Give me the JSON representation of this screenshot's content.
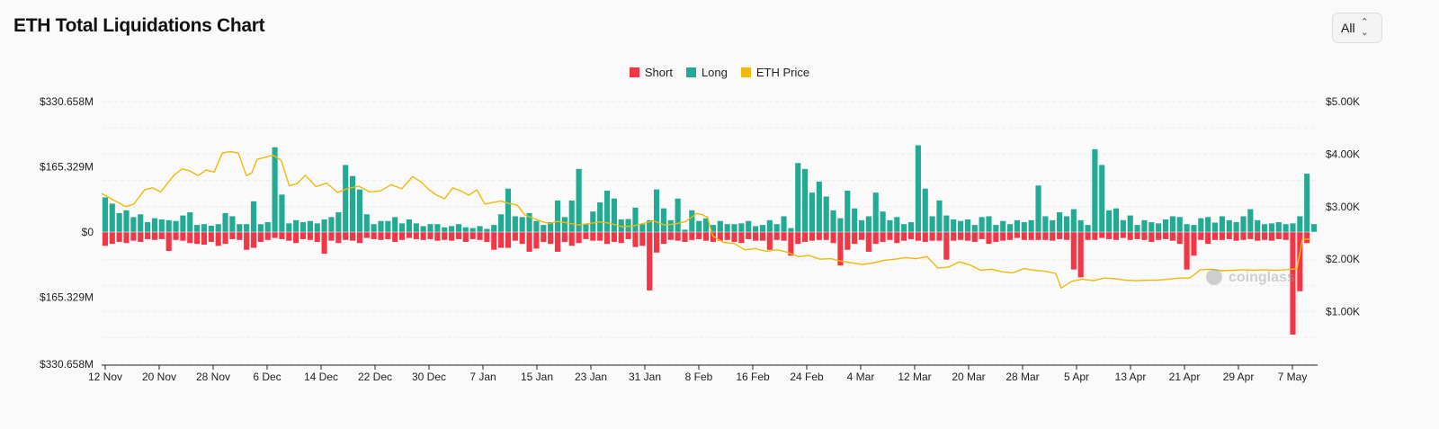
{
  "page": {
    "title": "ETH Total Liquidations Chart"
  },
  "range_select": {
    "value": "All"
  },
  "colors": {
    "short": "#f23645",
    "long": "#22ab94",
    "price": "#f0b90b",
    "background": "#fafafa"
  },
  "icons": {
    "range_select": "chevron-up-down-icon"
  },
  "watermark": "coinglass",
  "chart_data": {
    "type": "bar",
    "title": "ETH Total Liquidations Chart",
    "legend": [
      "Short",
      "Long",
      "ETH Price"
    ],
    "legend_position": "top-center",
    "grid": true,
    "y_left": {
      "ticks": [
        "$330.658M",
        "$165.329M",
        "$0",
        "$165.329M",
        "$330.658M"
      ],
      "range_millions": [
        -330.658,
        330.658
      ]
    },
    "y_right": {
      "ticks": [
        "$5.00K",
        "$4.00K",
        "$3.00K",
        "$2.00K",
        "$1.00K"
      ],
      "range": [
        0,
        5000
      ]
    },
    "x_ticks": [
      "12 Nov",
      "20 Nov",
      "28 Nov",
      "6 Dec",
      "14 Dec",
      "22 Dec",
      "30 Dec",
      "7 Jan",
      "15 Jan",
      "23 Jan",
      "31 Jan",
      "8 Feb",
      "16 Feb",
      "24 Feb",
      "4 Mar",
      "12 Mar",
      "20 Mar",
      "28 Mar",
      "5 Apr",
      "13 Apr",
      "21 Apr",
      "29 Apr",
      "7 May"
    ],
    "series": [
      {
        "name": "Long",
        "unit": "USD millions",
        "values": [
          88,
          72,
          48,
          55,
          38,
          45,
          25,
          35,
          32,
          30,
          28,
          42,
          50,
          18,
          20,
          16,
          20,
          48,
          40,
          20,
          20,
          78,
          20,
          25,
          215,
          95,
          22,
          30,
          25,
          28,
          22,
          32,
          38,
          50,
          170,
          142,
          108,
          45,
          20,
          28,
          28,
          38,
          22,
          32,
          22,
          15,
          20,
          20,
          12,
          15,
          20,
          12,
          10,
          15,
          8,
          18,
          45,
          110,
          40,
          38,
          48,
          28,
          18,
          25,
          80,
          38,
          80,
          160,
          20,
          52,
          75,
          105,
          85,
          32,
          33,
          62,
          20,
          30,
          108,
          60,
          30,
          85,
          6,
          55,
          28,
          35,
          18,
          28,
          20,
          20,
          22,
          28,
          15,
          18,
          30,
          20,
          40,
          10,
          175,
          160,
          100,
          128,
          90,
          55,
          35,
          105,
          60,
          30,
          40,
          100,
          52,
          30,
          38,
          20,
          25,
          220,
          110,
          40,
          80,
          42,
          32,
          28,
          32,
          18,
          38,
          40,
          18,
          28,
          20,
          30,
          25,
          30,
          118,
          40,
          30,
          50,
          40,
          58,
          30,
          18,
          210,
          170,
          55,
          60,
          30,
          42,
          18,
          30,
          25,
          22,
          32,
          40,
          38,
          20,
          18,
          35,
          38,
          24,
          40,
          30,
          25,
          40,
          58,
          30,
          20,
          22,
          25,
          20,
          22,
          40,
          148,
          20
        ]
      },
      {
        "name": "Short",
        "unit": "USD millions",
        "values": [
          35,
          30,
          25,
          28,
          22,
          25,
          18,
          20,
          18,
          48,
          20,
          22,
          28,
          30,
          32,
          25,
          35,
          30,
          18,
          20,
          45,
          40,
          25,
          20,
          15,
          18,
          22,
          28,
          18,
          20,
          25,
          55,
          22,
          28,
          20,
          22,
          28,
          15,
          18,
          20,
          18,
          25,
          20,
          15,
          18,
          20,
          18,
          22,
          20,
          22,
          18,
          25,
          18,
          20,
          25,
          45,
          40,
          40,
          22,
          30,
          50,
          42,
          25,
          30,
          50,
          25,
          35,
          28,
          18,
          22,
          22,
          30,
          25,
          28,
          18,
          38,
          35,
          148,
          52,
          30,
          20,
          22,
          25,
          20,
          18,
          22,
          25,
          22,
          20,
          25,
          28,
          18,
          22,
          22,
          45,
          20,
          22,
          60,
          30,
          25,
          22,
          20,
          20,
          28,
          85,
          45,
          30,
          20,
          50,
          30,
          25,
          20,
          28,
          22,
          18,
          22,
          25,
          22,
          22,
          70,
          22,
          20,
          22,
          25,
          18,
          30,
          25,
          22,
          20,
          15,
          20,
          20,
          20,
          20,
          22,
          18,
          20,
          95,
          115,
          20,
          20,
          15,
          18,
          20,
          15,
          20,
          18,
          20,
          25,
          20,
          18,
          22,
          30,
          95,
          60,
          20,
          30,
          20,
          20,
          18,
          22,
          20,
          18,
          22,
          20,
          22,
          18,
          20,
          260,
          150,
          28
        ]
      },
      {
        "name": "ETH Price",
        "unit": "USD",
        "points": [
          [
            0,
            3250
          ],
          [
            4,
            3140
          ],
          [
            9,
            3000
          ],
          [
            12,
            3050
          ],
          [
            16,
            3320
          ],
          [
            19,
            3360
          ],
          [
            22,
            3280
          ],
          [
            27,
            3600
          ],
          [
            30,
            3720
          ],
          [
            33,
            3680
          ],
          [
            36,
            3590
          ],
          [
            39,
            3700
          ],
          [
            42,
            3660
          ],
          [
            45,
            4020
          ],
          [
            48,
            4050
          ],
          [
            51,
            4020
          ],
          [
            54,
            3590
          ],
          [
            56,
            3640
          ],
          [
            58,
            3900
          ],
          [
            61,
            3940
          ],
          [
            64,
            3980
          ],
          [
            67,
            3880
          ],
          [
            70,
            3400
          ],
          [
            73,
            3440
          ],
          [
            76,
            3600
          ],
          [
            80,
            3380
          ],
          [
            84,
            3450
          ],
          [
            88,
            3270
          ],
          [
            92,
            3350
          ],
          [
            96,
            3390
          ],
          [
            100,
            3280
          ],
          [
            104,
            3300
          ],
          [
            108,
            3420
          ],
          [
            112,
            3340
          ],
          [
            116,
            3570
          ],
          [
            119,
            3480
          ],
          [
            122,
            3330
          ],
          [
            125,
            3220
          ],
          [
            128,
            3150
          ],
          [
            131,
            3360
          ],
          [
            134,
            3300
          ],
          [
            137,
            3220
          ],
          [
            140,
            3320
          ],
          [
            143,
            3050
          ],
          [
            146,
            3080
          ],
          [
            149,
            3110
          ],
          [
            152,
            3060
          ],
          [
            155,
            3030
          ],
          [
            158,
            2840
          ],
          [
            161,
            2780
          ],
          [
            164,
            2720
          ],
          [
            167,
            2680
          ],
          [
            170,
            2720
          ],
          [
            174,
            2690
          ],
          [
            178,
            2650
          ],
          [
            182,
            2680
          ],
          [
            186,
            2710
          ],
          [
            190,
            2680
          ],
          [
            194,
            2620
          ],
          [
            198,
            2630
          ],
          [
            202,
            2680
          ],
          [
            206,
            2730
          ],
          [
            210,
            2650
          ],
          [
            214,
            2670
          ],
          [
            218,
            2720
          ],
          [
            222,
            2870
          ],
          [
            224,
            2850
          ],
          [
            226,
            2800
          ],
          [
            228,
            2440
          ],
          [
            232,
            2320
          ],
          [
            236,
            2300
          ],
          [
            240,
            2180
          ],
          [
            244,
            2200
          ],
          [
            248,
            2150
          ],
          [
            252,
            2180
          ],
          [
            256,
            2130
          ],
          [
            260,
            2050
          ],
          [
            264,
            2070
          ],
          [
            268,
            2000
          ],
          [
            272,
            2010
          ],
          [
            276,
            1960
          ],
          [
            280,
            1930
          ],
          [
            284,
            1900
          ],
          [
            288,
            1930
          ],
          [
            292,
            1980
          ],
          [
            296,
            2000
          ],
          [
            300,
            2030
          ],
          [
            304,
            2010
          ],
          [
            308,
            2050
          ],
          [
            312,
            1830
          ],
          [
            316,
            1850
          ],
          [
            320,
            1950
          ],
          [
            324,
            1890
          ],
          [
            328,
            1790
          ],
          [
            332,
            1810
          ],
          [
            336,
            1760
          ],
          [
            340,
            1740
          ],
          [
            344,
            1820
          ],
          [
            348,
            1790
          ],
          [
            352,
            1770
          ],
          [
            356,
            1730
          ],
          [
            358,
            1450
          ],
          [
            362,
            1580
          ],
          [
            366,
            1620
          ],
          [
            370,
            1590
          ],
          [
            374,
            1640
          ],
          [
            378,
            1630
          ],
          [
            382,
            1600
          ],
          [
            386,
            1590
          ],
          [
            390,
            1600
          ],
          [
            394,
            1600
          ],
          [
            398,
            1620
          ],
          [
            402,
            1640
          ],
          [
            406,
            1640
          ],
          [
            410,
            1800
          ],
          [
            414,
            1810
          ],
          [
            418,
            1780
          ],
          [
            422,
            1790
          ],
          [
            426,
            1800
          ],
          [
            430,
            1790
          ],
          [
            434,
            1800
          ],
          [
            438,
            1790
          ],
          [
            442,
            1800
          ],
          [
            446,
            1820
          ],
          [
            448,
            2380
          ],
          [
            451,
            2380
          ]
        ]
      }
    ]
  }
}
